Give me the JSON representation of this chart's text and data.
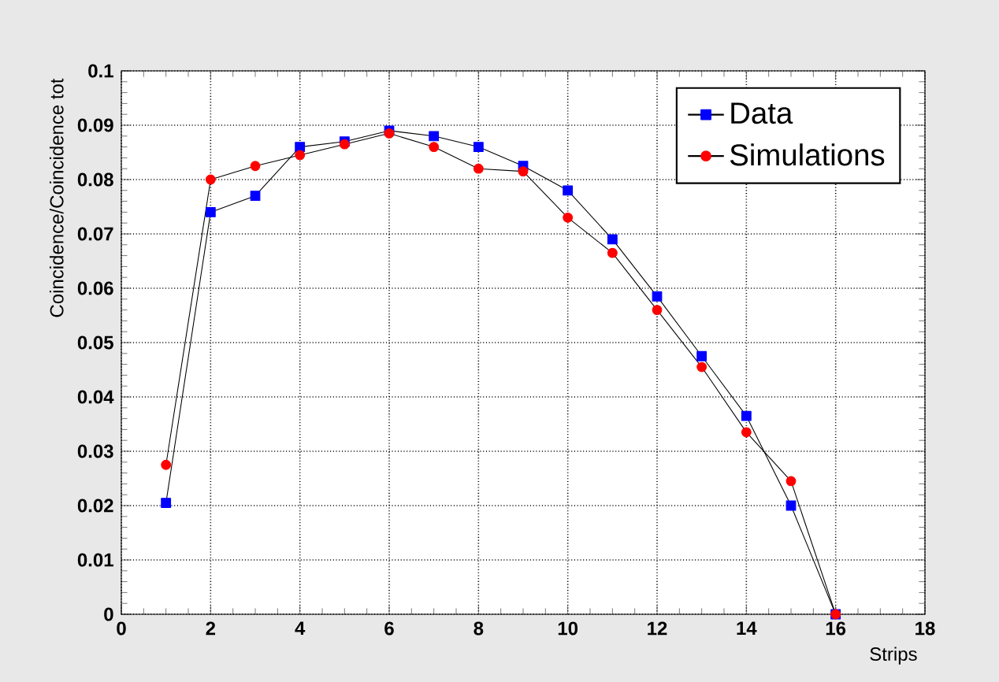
{
  "chart_data": {
    "type": "line",
    "xlabel": "Strips",
    "ylabel": "Coincidence/Coincidence tot",
    "x": [
      1,
      2,
      3,
      4,
      5,
      6,
      7,
      8,
      9,
      10,
      11,
      12,
      13,
      14,
      15,
      16
    ],
    "series": [
      {
        "name": "Data",
        "color": "#0000ff",
        "marker": "square",
        "values": [
          0.0205,
          0.074,
          0.077,
          0.086,
          0.087,
          0.089,
          0.088,
          0.086,
          0.0825,
          0.078,
          0.069,
          0.0585,
          0.0475,
          0.0365,
          0.02,
          0.0
        ]
      },
      {
        "name": "Simulations",
        "color": "#ff0000",
        "marker": "circle",
        "values": [
          0.0275,
          0.08,
          0.0825,
          0.0845,
          0.0865,
          0.0885,
          0.086,
          0.082,
          0.0815,
          0.073,
          0.0665,
          0.056,
          0.0455,
          0.0335,
          0.0245,
          0.0
        ]
      }
    ],
    "xlim": [
      0,
      18
    ],
    "xticks": [
      0,
      2,
      4,
      6,
      8,
      10,
      12,
      14,
      16,
      18
    ],
    "ylim": [
      0,
      0.1
    ],
    "yticks": [
      0,
      0.01,
      0.02,
      0.03,
      0.04,
      0.05,
      0.06,
      0.07,
      0.08,
      0.09,
      0.1
    ],
    "grid": true,
    "legend": "top right"
  }
}
